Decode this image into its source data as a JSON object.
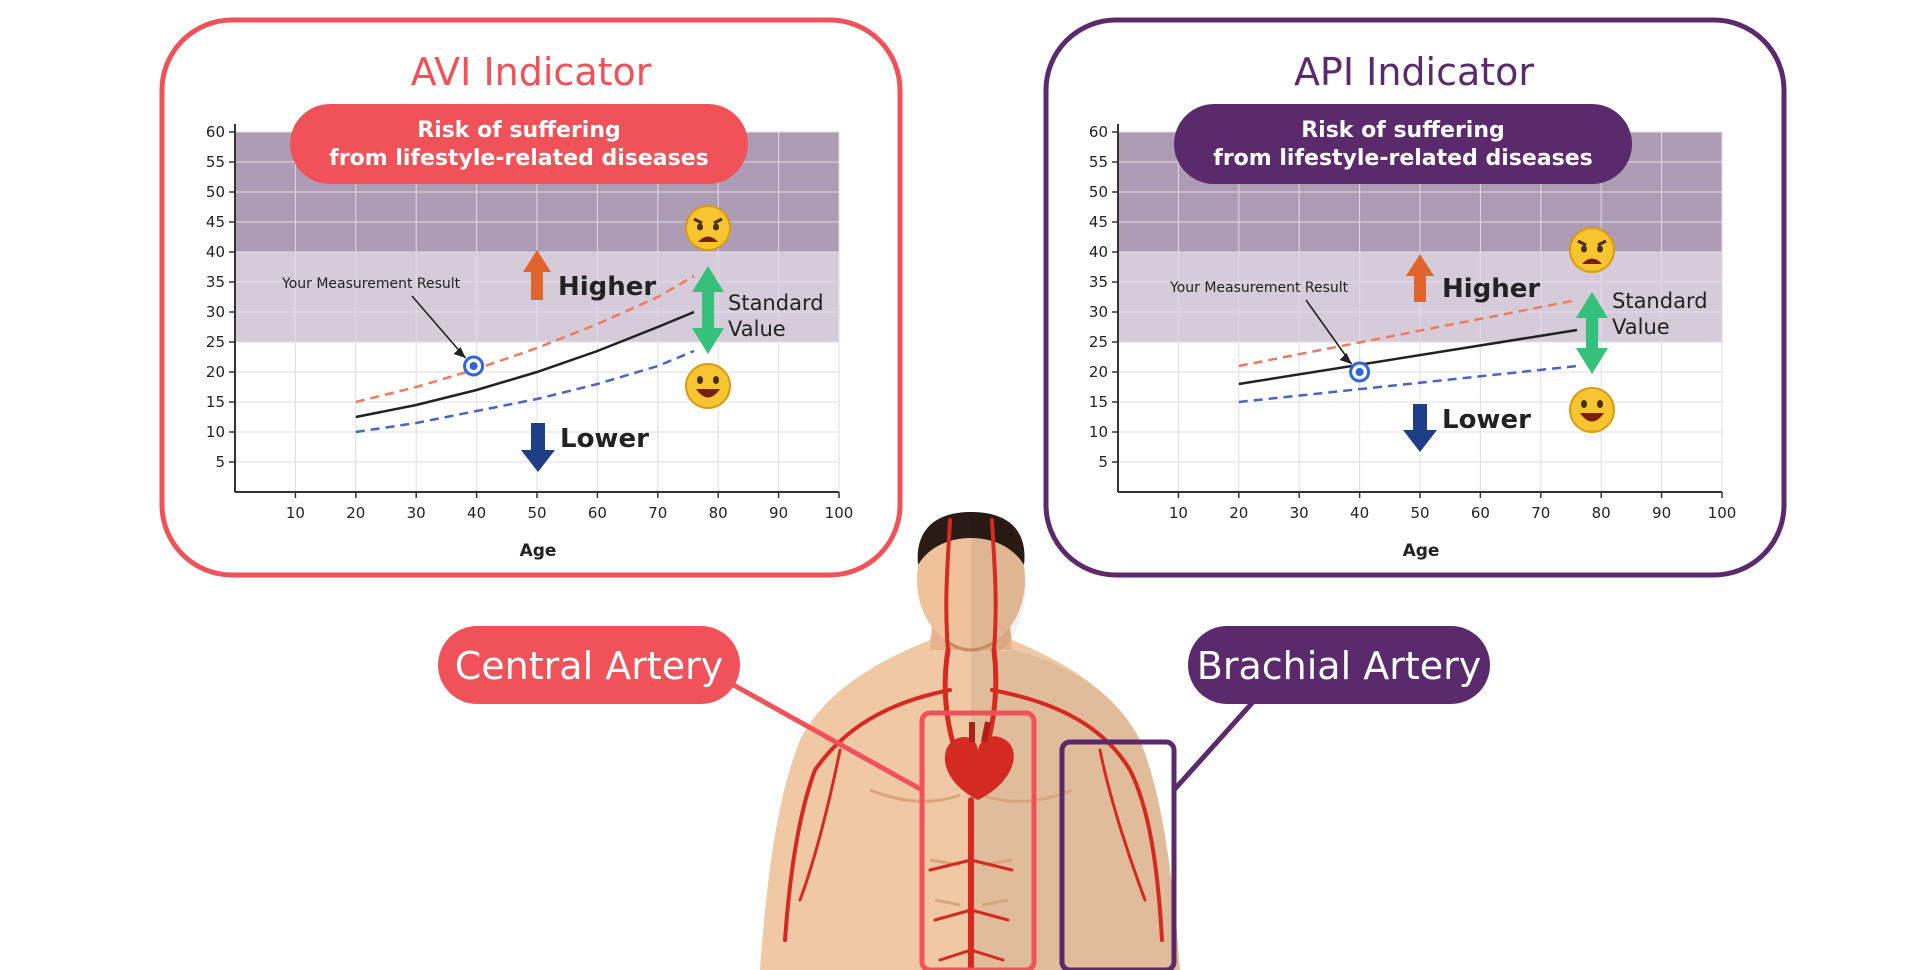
{
  "colors": {
    "avi_accent": "#f1525a",
    "api_accent": "#5a2a6c",
    "risk_band": "#ad9cb3",
    "moderate_band": "#d6ccd9",
    "higher_arrow": "#e0642c",
    "lower_arrow": "#1e3f88",
    "standard_arrow": "#35c07c",
    "upper_dash": "#f07a60",
    "lower_dash": "#4a63c8",
    "marker": "#2f63df",
    "artery": "#d42a22",
    "skin": "#f0c8a4"
  },
  "icons": [
    "worried-face-icon",
    "happy-face-icon",
    "heart-icon",
    "measurement-marker-icon"
  ],
  "chart_data": [
    {
      "type": "line",
      "title": "AVI Indicator",
      "banner": [
        "Risk of suffering",
        "from lifestyle-related diseases"
      ],
      "xlabel": "Age",
      "xlim": [
        0,
        100
      ],
      "ylim": [
        0,
        60
      ],
      "xticks": [
        10,
        20,
        30,
        40,
        50,
        60,
        70,
        80,
        90,
        100
      ],
      "yticks": [
        5,
        10,
        15,
        20,
        25,
        30,
        35,
        40,
        45,
        50,
        55,
        60
      ],
      "grid": true,
      "bands": [
        {
          "from": 40,
          "to": 60,
          "level": "risk"
        },
        {
          "from": 25,
          "to": 40,
          "level": "moderate"
        }
      ],
      "series": [
        {
          "style": "dashed-upper",
          "x": [
            20,
            30,
            40,
            50,
            60,
            70,
            76
          ],
          "y": [
            15,
            17.5,
            20.5,
            24,
            28,
            32.5,
            36
          ]
        },
        {
          "style": "solid-standard",
          "x": [
            20,
            30,
            40,
            50,
            60,
            70,
            76
          ],
          "y": [
            12.5,
            14.5,
            17,
            20,
            23.5,
            27.5,
            30
          ]
        },
        {
          "style": "dashed-lower",
          "x": [
            20,
            30,
            40,
            50,
            60,
            70,
            76
          ],
          "y": [
            10,
            11.5,
            13.5,
            15.5,
            18,
            21,
            23.5
          ]
        }
      ],
      "measurement": {
        "x": 39.5,
        "y": 21
      },
      "annotations": {
        "measurement": "Your Measurement Result",
        "higher": "Higher",
        "lower": "Lower",
        "standard": [
          "Standard",
          "Value"
        ]
      }
    },
    {
      "type": "line",
      "title": "API Indicator",
      "banner": [
        "Risk of suffering",
        "from lifestyle-related diseases"
      ],
      "xlabel": "Age",
      "xlim": [
        0,
        100
      ],
      "ylim": [
        0,
        60
      ],
      "xticks": [
        10,
        20,
        30,
        40,
        50,
        60,
        70,
        80,
        90,
        100
      ],
      "yticks": [
        5,
        10,
        15,
        20,
        25,
        30,
        35,
        40,
        45,
        50,
        55,
        60
      ],
      "grid": true,
      "bands": [
        {
          "from": 40,
          "to": 60,
          "level": "risk"
        },
        {
          "from": 25,
          "to": 40,
          "level": "moderate"
        }
      ],
      "series": [
        {
          "style": "dashed-upper",
          "x": [
            20,
            76
          ],
          "y": [
            21,
            32
          ]
        },
        {
          "style": "solid-standard",
          "x": [
            20,
            76
          ],
          "y": [
            18,
            27
          ]
        },
        {
          "style": "dashed-lower",
          "x": [
            20,
            76
          ],
          "y": [
            15,
            21
          ]
        }
      ],
      "measurement": {
        "x": 40,
        "y": 20
      },
      "annotations": {
        "measurement": "Your Measurement Result",
        "higher": "Higher",
        "lower": "Lower",
        "standard": [
          "Standard",
          "Value"
        ]
      }
    }
  ],
  "artery_labels": {
    "central": "Central Artery",
    "brachial": "Brachial Artery"
  }
}
